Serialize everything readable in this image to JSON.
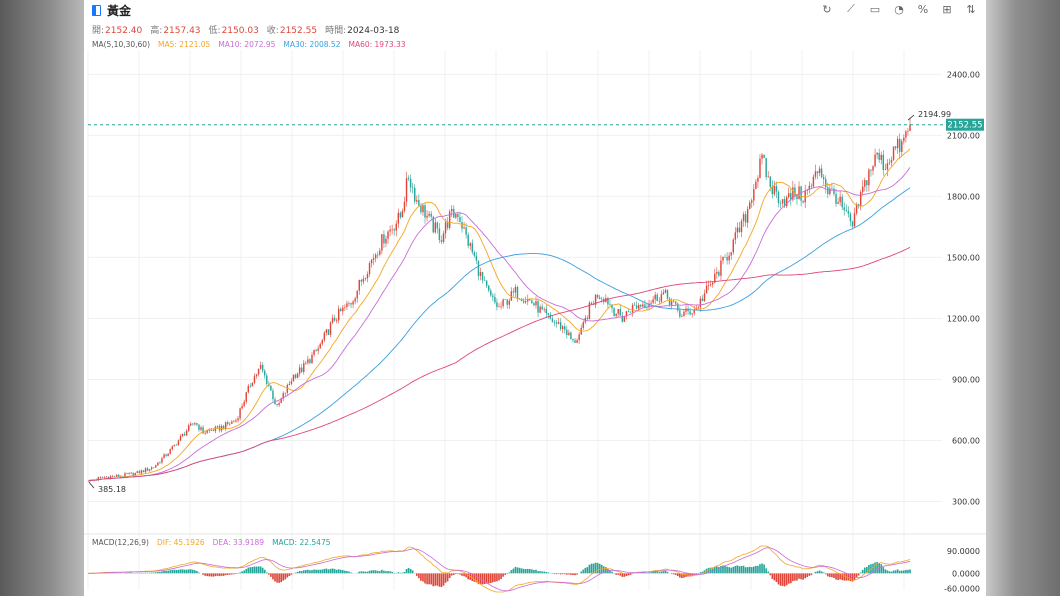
{
  "header": {
    "title": "黃金",
    "ohlc": [
      {
        "label": "開:",
        "value": "2152.40"
      },
      {
        "label": "高:",
        "value": "2157.43"
      },
      {
        "label": "低:",
        "value": "2150.03"
      },
      {
        "label": "收:",
        "value": "2152.55"
      },
      {
        "label": "時間:",
        "value": "2024-03-18"
      }
    ]
  },
  "toolbar": {
    "buttons": [
      {
        "name": "refresh-icon",
        "glyph": "↻"
      },
      {
        "name": "draw-icon",
        "glyph": "⟋"
      },
      {
        "name": "indicator-icon",
        "glyph": "▭"
      },
      {
        "name": "pie-icon",
        "glyph": "◔"
      },
      {
        "name": "percent-icon",
        "glyph": "%"
      },
      {
        "name": "grid-icon",
        "glyph": "⊞"
      },
      {
        "name": "compare-icon",
        "glyph": "⇅"
      }
    ]
  },
  "ma_legend": {
    "label": "MA(5,10,30,60)",
    "items": [
      {
        "text": "MA5: 2121.05",
        "color": "#f5a623"
      },
      {
        "text": "MA10: 2072.95",
        "color": "#c86dd7"
      },
      {
        "text": "MA30: 2008.52",
        "color": "#3b9fe0"
      },
      {
        "text": "MA60: 1973.33",
        "color": "#e0467a"
      }
    ]
  },
  "macd_legend": {
    "label": "MACD(12,26,9)",
    "items": [
      {
        "text": "DIF: 45.1926",
        "color": "#f5a623"
      },
      {
        "text": "DEA: 33.9189",
        "color": "#c86dd7"
      },
      {
        "text": "MACD: 22.5475",
        "color": "#22a39f"
      }
    ]
  },
  "current_price_tag": "2152.55",
  "high_annotation": "2194.99",
  "low_annotation": "385.18",
  "colors": {
    "up": "#e0463a",
    "down": "#26a69a",
    "dashed_line": "#26a69a",
    "tag_bg": "#26a69a"
  },
  "chart_data": [
    {
      "type": "candlestick",
      "title": "黃金",
      "y_axis_ticks": [
        "2400.00",
        "2100.00",
        "1800.00",
        "1500.00",
        "1200.00",
        "900.00",
        "600.00",
        "300.00"
      ],
      "ylim": [
        150,
        2510
      ],
      "grid": true,
      "close_path": [
        [
          0,
          400
        ],
        [
          2,
          420
        ],
        [
          4,
          425
        ],
        [
          6,
          440
        ],
        [
          8,
          470
        ],
        [
          10,
          550
        ],
        [
          12,
          650
        ],
        [
          13,
          690
        ],
        [
          14,
          640
        ],
        [
          16,
          660
        ],
        [
          18,
          700
        ],
        [
          20,
          900
        ],
        [
          21,
          960
        ],
        [
          22,
          870
        ],
        [
          23,
          760
        ],
        [
          24,
          840
        ],
        [
          25,
          920
        ],
        [
          26,
          950
        ],
        [
          28,
          1050
        ],
        [
          30,
          1200
        ],
        [
          32,
          1280
        ],
        [
          34,
          1450
        ],
        [
          36,
          1600
        ],
        [
          38,
          1700
        ],
        [
          39,
          1900
        ],
        [
          40,
          1780
        ],
        [
          41,
          1720
        ],
        [
          42,
          1650
        ],
        [
          43,
          1600
        ],
        [
          44,
          1700
        ],
        [
          45,
          1720
        ],
        [
          46,
          1600
        ],
        [
          47,
          1500
        ],
        [
          48,
          1380
        ],
        [
          49,
          1300
        ],
        [
          50,
          1250
        ],
        [
          52,
          1330
        ],
        [
          54,
          1280
        ],
        [
          56,
          1200
        ],
        [
          58,
          1150
        ],
        [
          59,
          1080
        ],
        [
          60,
          1130
        ],
        [
          61,
          1250
        ],
        [
          62,
          1320
        ],
        [
          63,
          1300
        ],
        [
          64,
          1240
        ],
        [
          65,
          1200
        ],
        [
          66,
          1250
        ],
        [
          68,
          1280
        ],
        [
          70,
          1320
        ],
        [
          71,
          1280
        ],
        [
          72,
          1220
        ],
        [
          73,
          1230
        ],
        [
          74,
          1250
        ],
        [
          75,
          1320
        ],
        [
          76,
          1380
        ],
        [
          78,
          1530
        ],
        [
          80,
          1700
        ],
        [
          81,
          1850
        ],
        [
          82,
          1980
        ],
        [
          83,
          1850
        ],
        [
          84,
          1800
        ],
        [
          85,
          1780
        ],
        [
          86,
          1820
        ],
        [
          87,
          1800
        ],
        [
          88,
          1850
        ],
        [
          89,
          1950
        ],
        [
          90,
          1830
        ],
        [
          91,
          1800
        ],
        [
          92,
          1720
        ],
        [
          93,
          1650
        ],
        [
          94,
          1800
        ],
        [
          95,
          1920
        ],
        [
          96,
          2000
        ],
        [
          97,
          1950
        ],
        [
          98,
          2030
        ],
        [
          99,
          2050
        ],
        [
          100,
          2152.55
        ]
      ],
      "high": {
        "x": 100,
        "value": 2194.99
      },
      "low": {
        "x": 0,
        "value": 385.18
      },
      "last_close": 2152.55,
      "last_date": "2024-03-18",
      "last_open": 2152.4,
      "last_high": 2157.43,
      "last_low": 2150.03,
      "ma_latest": {
        "MA5": 2121.05,
        "MA10": 2072.95,
        "MA30": 2008.52,
        "MA60": 1973.33
      }
    },
    {
      "type": "bar",
      "title": "MACD(12,26,9)",
      "y_axis_ticks": [
        "90.0000",
        "0.0000",
        "-60.0000"
      ],
      "ylim": [
        -75,
        110
      ],
      "latest": {
        "DIF": 45.1926,
        "DEA": 33.9189,
        "MACD": 22.5475
      }
    }
  ]
}
